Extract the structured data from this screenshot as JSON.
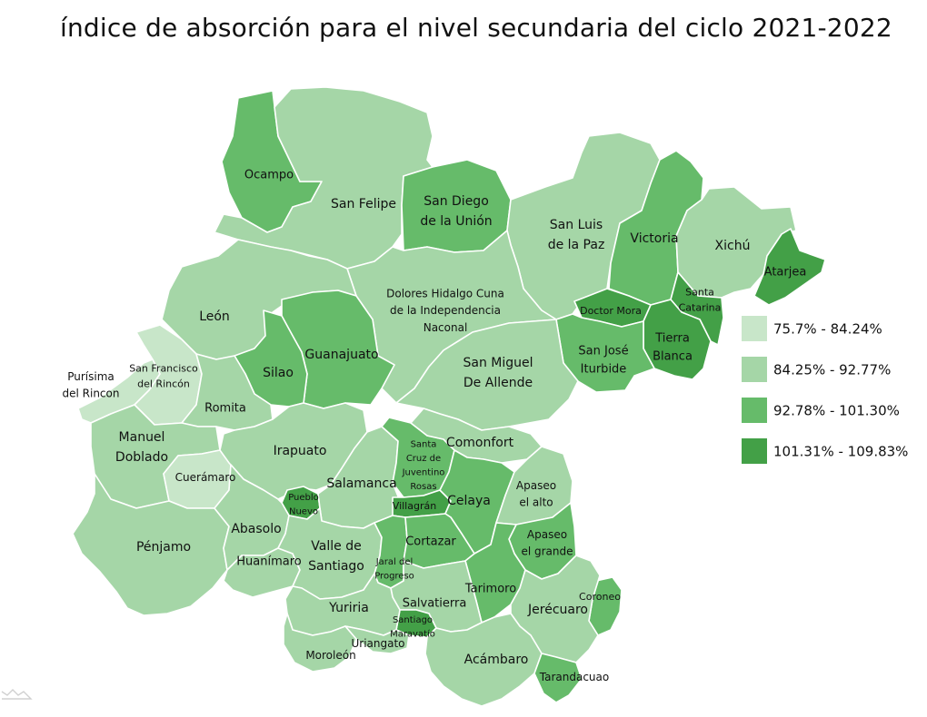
{
  "title": "índice de absorción para el nivel secundaria del ciclo 2021-2022",
  "colors": {
    "c1": "#c8e6c9",
    "c2": "#a5d6a7",
    "c3": "#66bb6a",
    "c4": "#43a047"
  },
  "legend": [
    {
      "label": "75.7% - 84.24%",
      "color": "#c8e6c9"
    },
    {
      "label": "84.25% - 92.77%",
      "color": "#a5d6a7"
    },
    {
      "label": "92.78% - 101.30%",
      "color": "#66bb6a"
    },
    {
      "label": "101.31% - 109.83%",
      "color": "#43a047"
    }
  ],
  "municipalities": [
    {
      "id": "ocampo",
      "lines": [
        "Ocampo"
      ],
      "class": 3
    },
    {
      "id": "san-felipe",
      "lines": [
        "San Felipe"
      ],
      "class": 2
    },
    {
      "id": "san-diego",
      "lines": [
        "San Diego",
        "de la Unión"
      ],
      "class": 3
    },
    {
      "id": "san-luis-paz",
      "lines": [
        "San Luis",
        "de la Paz"
      ],
      "class": 2
    },
    {
      "id": "victoria",
      "lines": [
        "Victoria"
      ],
      "class": 3
    },
    {
      "id": "xichu",
      "lines": [
        "Xichú"
      ],
      "class": 2
    },
    {
      "id": "atarjea",
      "lines": [
        "Atarjea"
      ],
      "class": 4
    },
    {
      "id": "santa-catarina",
      "lines": [
        "Santa",
        "Catarina"
      ],
      "class": 4
    },
    {
      "id": "doctor-mora",
      "lines": [
        "Doctor Mora"
      ],
      "class": 4
    },
    {
      "id": "tierra-blanca",
      "lines": [
        "Tierra",
        "Blanca"
      ],
      "class": 4
    },
    {
      "id": "san-jose-iturbide",
      "lines": [
        "San José",
        "Iturbide"
      ],
      "class": 3
    },
    {
      "id": "dolores-hidalgo",
      "lines": [
        "Dolores Hidalgo Cuna",
        "de la Independencia",
        "Naconal"
      ],
      "class": 2
    },
    {
      "id": "san-miguel-allende",
      "lines": [
        "San Miguel",
        "De Allende"
      ],
      "class": 2
    },
    {
      "id": "leon",
      "lines": [
        "León"
      ],
      "class": 2
    },
    {
      "id": "guanajuato",
      "lines": [
        "Guanajuato"
      ],
      "class": 3
    },
    {
      "id": "silao",
      "lines": [
        "Silao"
      ],
      "class": 3
    },
    {
      "id": "purisima",
      "lines": [
        "Purísima",
        "del Rincon"
      ],
      "class": 1
    },
    {
      "id": "san-francisco-rincon",
      "lines": [
        "San Francisco",
        "del Rincón"
      ],
      "class": 1
    },
    {
      "id": "romita",
      "lines": [
        "Romita"
      ],
      "class": 2
    },
    {
      "id": "manuel-doblado",
      "lines": [
        "Manuel",
        "Doblado"
      ],
      "class": 2
    },
    {
      "id": "cueramaro",
      "lines": [
        "Cuerámaro"
      ],
      "class": 1
    },
    {
      "id": "irapuato",
      "lines": [
        "Irapuato"
      ],
      "class": 2
    },
    {
      "id": "pueblo-nuevo",
      "lines": [
        "Pueblo",
        "Nuevo"
      ],
      "class": 4
    },
    {
      "id": "salamanca",
      "lines": [
        "Salamanca"
      ],
      "class": 2
    },
    {
      "id": "santa-cruz-rosas",
      "lines": [
        "Santa",
        "Cruz de",
        "Juventino",
        "Rosas"
      ],
      "class": 3
    },
    {
      "id": "comonfort",
      "lines": [
        "Comonfort"
      ],
      "class": 2
    },
    {
      "id": "villagran",
      "lines": [
        "Villagrán"
      ],
      "class": 4
    },
    {
      "id": "celaya",
      "lines": [
        "Celaya"
      ],
      "class": 3
    },
    {
      "id": "apaseo-alto",
      "lines": [
        "Apaseo",
        "el alto"
      ],
      "class": 2
    },
    {
      "id": "apaseo-grande",
      "lines": [
        "Apaseo",
        "el grande"
      ],
      "class": 3
    },
    {
      "id": "penjamo",
      "lines": [
        "Pénjamo"
      ],
      "class": 2
    },
    {
      "id": "abasolo",
      "lines": [
        "Abasolo"
      ],
      "class": 2
    },
    {
      "id": "huanimaro",
      "lines": [
        "Huanímaro"
      ],
      "class": 2
    },
    {
      "id": "valle-santiago",
      "lines": [
        "Valle de",
        "Santiago"
      ],
      "class": 2
    },
    {
      "id": "jaral-progreso",
      "lines": [
        "Jaral del",
        "Progreso"
      ],
      "class": 3
    },
    {
      "id": "cortazar",
      "lines": [
        "Cortazar"
      ],
      "class": 3
    },
    {
      "id": "tarimoro",
      "lines": [
        "Tarimoro"
      ],
      "class": 3
    },
    {
      "id": "coroneo",
      "lines": [
        "Coroneo"
      ],
      "class": 3
    },
    {
      "id": "jerecuaro",
      "lines": [
        "Jerécuaro"
      ],
      "class": 2
    },
    {
      "id": "salvatierra",
      "lines": [
        "Salvatierra"
      ],
      "class": 2
    },
    {
      "id": "santiago-maravatio",
      "lines": [
        "Santiago",
        "Maravatío"
      ],
      "class": 4
    },
    {
      "id": "yuriria",
      "lines": [
        "Yuriria"
      ],
      "class": 2
    },
    {
      "id": "moroleon",
      "lines": [
        "Moroleón"
      ],
      "class": 2
    },
    {
      "id": "uriangato",
      "lines": [
        "Uriangato"
      ],
      "class": 2
    },
    {
      "id": "acambaro",
      "lines": [
        "Acámbaro"
      ],
      "class": 2
    },
    {
      "id": "tarandacuao",
      "lines": [
        "Tarandacuao"
      ],
      "class": 3
    }
  ]
}
